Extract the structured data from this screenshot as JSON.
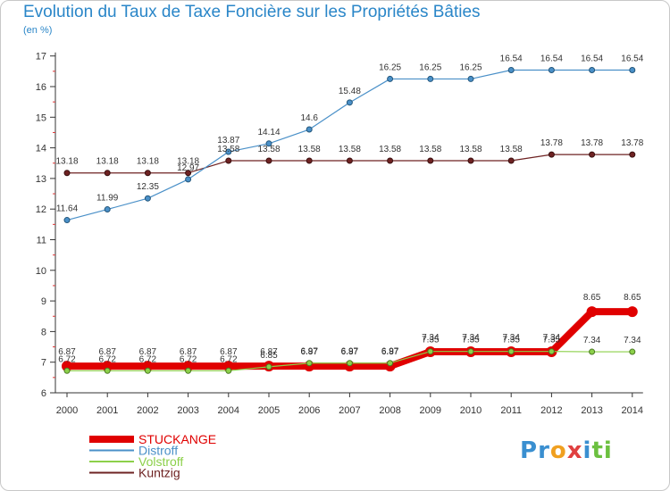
{
  "chart_data": {
    "type": "line",
    "title": "Evolution du Taux de Taxe Foncière sur les Propriétés Bâties",
    "unit_label": "(en %)",
    "categories": [
      "2000",
      "2001",
      "2002",
      "2003",
      "2004",
      "2005",
      "2006",
      "2007",
      "2008",
      "2009",
      "2010",
      "2011",
      "2012",
      "2013",
      "2014"
    ],
    "ylim": [
      6,
      17
    ],
    "yticks": [
      6,
      7,
      8,
      9,
      10,
      11,
      12,
      13,
      14,
      15,
      16,
      17
    ],
    "grid": false,
    "legend_position": "bottom-left",
    "series": [
      {
        "name": "STUCKANGE",
        "color": "#e00000",
        "values": [
          6.87,
          6.87,
          6.87,
          6.87,
          6.87,
          6.87,
          6.87,
          6.87,
          6.87,
          7.34,
          7.34,
          7.34,
          7.34,
          8.65,
          8.65
        ],
        "labels": [
          "6.87",
          "6.87",
          "6.87",
          "6.87",
          "6.87",
          "6.87",
          "6.87",
          "6.87",
          "6.87",
          "7.34",
          "7.34",
          "7.34",
          "7.34",
          "8.65",
          "8.65"
        ]
      },
      {
        "name": "Distroff",
        "color": "#4a90c8",
        "values": [
          11.64,
          11.99,
          12.35,
          12.97,
          13.87,
          14.14,
          14.6,
          15.48,
          16.25,
          16.25,
          16.25,
          16.54,
          16.54,
          16.54,
          16.54
        ],
        "labels": [
          "11.64",
          "11.99",
          "12.35",
          "12.97",
          "13.87",
          "14.14",
          "14.6",
          "15.48",
          "16.25",
          "16.25",
          "16.25",
          "16.54",
          "16.54",
          "16.54",
          "16.54"
        ]
      },
      {
        "name": "Volstroff",
        "color": "#8cd04a",
        "values": [
          6.72,
          6.72,
          6.72,
          6.72,
          6.72,
          6.85,
          6.97,
          6.97,
          6.97,
          7.35,
          7.35,
          7.35,
          7.35,
          7.34,
          7.34
        ],
        "labels": [
          "6.72",
          "6.72",
          "6.72",
          "6.72",
          "6.72",
          "6.85",
          "6.97",
          "6.97",
          "6.97",
          "7.35",
          "7.35",
          "7.35",
          "7.35",
          "7.34",
          "7.34"
        ]
      },
      {
        "name": "Kuntzig",
        "color": "#6e2222",
        "values": [
          13.18,
          13.18,
          13.18,
          13.18,
          13.58,
          13.58,
          13.58,
          13.58,
          13.58,
          13.58,
          13.58,
          13.58,
          13.78,
          13.78,
          13.78
        ],
        "labels": [
          "13.18",
          "13.18",
          "13.18",
          "13.18",
          "13.58",
          "13.58",
          "13.58",
          "13.58",
          "13.58",
          "13.58",
          "13.58",
          "13.58",
          "13.78",
          "13.78",
          "13.78"
        ]
      }
    ]
  },
  "branding": {
    "logo_text": "Proxiti",
    "letters": [
      "P",
      "r",
      "o",
      "x",
      "i",
      "t",
      "i"
    ],
    "letter_colors": [
      "#3a8fd0",
      "#3a8fd0",
      "#f0a020",
      "#e04040",
      "#3a8fd0",
      "#6cc040",
      "#6cc040"
    ]
  }
}
